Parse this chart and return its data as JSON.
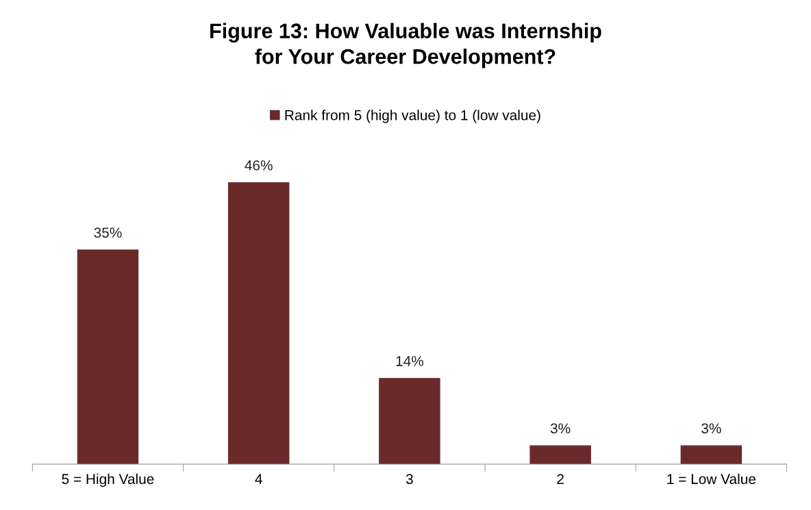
{
  "chart_data": {
    "type": "bar",
    "title": "Figure 13: How Valuable was Internship\nfor Your Career Development?",
    "categories": [
      "5 = High Value",
      "4",
      "3",
      "2",
      "1 = Low Value"
    ],
    "series": [
      {
        "name": "Rank from 5 (high value) to 1 (low value)",
        "color": "#6b2a2a",
        "values": [
          35,
          46,
          14,
          3,
          3
        ],
        "value_labels": [
          "35%",
          "46%",
          "14%",
          "3%",
          "3%"
        ]
      }
    ],
    "legend": "top",
    "grid": false
  }
}
